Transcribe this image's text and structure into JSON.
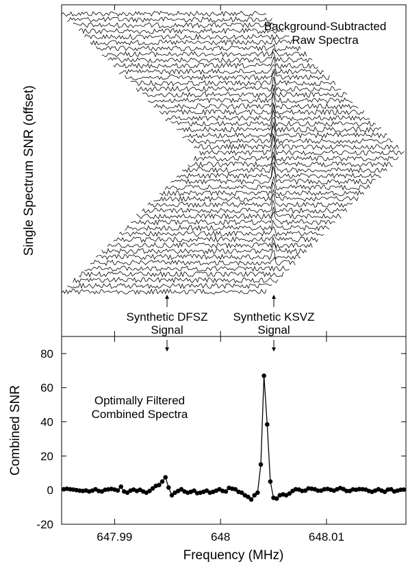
{
  "chart_data": [
    {
      "type": "line",
      "panel": "top",
      "ylabel": "Single Spectrum SNR (offset)",
      "annotation_title": [
        "Background-Subtracted",
        "Raw Spectra"
      ],
      "annotation_dfsz": [
        "Synthetic DFSZ",
        "Signal"
      ],
      "annotation_ksvz": [
        "Synthetic KSVZ",
        "Signal"
      ],
      "spectra_count": 49,
      "ksvz_peak_frequency": 648.005,
      "dfsz_frequency": 647.995,
      "note_series": "stack of offset background-subtracted raw spectra, each shifted in frequency"
    },
    {
      "type": "line",
      "panel": "bottom",
      "xlabel": "Frequency (MHz)",
      "ylabel": "Combined SNR",
      "title": [
        "Optimally Filtered",
        "Combined Spectra"
      ],
      "xlim": [
        647.985,
        648.0175
      ],
      "ylim": [
        -20,
        90
      ],
      "xticks": [
        647.99,
        648,
        648.01
      ],
      "xtick_labels": [
        "647.99",
        "648",
        "648.01"
      ],
      "yticks": [
        -20,
        0,
        20,
        40,
        60,
        80
      ],
      "ytick_labels": [
        "-20",
        "0",
        "20",
        "40",
        "60",
        "80"
      ],
      "series": [
        {
          "x": [
            647.9852,
            647.9855,
            647.9858,
            647.9861,
            647.9864,
            647.9867,
            647.987,
            647.9873,
            647.9876,
            647.9879,
            647.9882,
            647.9885,
            647.9888,
            647.9891,
            647.9894,
            647.9897,
            647.99,
            647.9903,
            647.9906,
            647.9909,
            647.9912,
            647.9915,
            647.9918,
            647.9921,
            647.9924,
            647.9927,
            647.993,
            647.9933,
            647.9936,
            647.9939,
            647.9942,
            647.9945,
            647.9948,
            647.9951,
            647.9954,
            647.9957,
            647.996,
            647.9963,
            647.9966,
            647.9969,
            647.9972,
            647.9975,
            647.9978,
            647.9981,
            647.9984,
            647.9987,
            647.999,
            647.9993,
            647.9996,
            647.9999,
            648.0002,
            648.0005,
            648.0008,
            648.0011,
            648.0014,
            648.0017,
            648.002,
            648.0023,
            648.0026,
            648.0029,
            648.0032,
            648.0035,
            648.0038,
            648.0041,
            648.0044,
            648.0047,
            648.005,
            648.0053,
            648.0056,
            648.0059,
            648.0062,
            648.0065,
            648.0068,
            648.0071,
            648.0074,
            648.0077,
            648.008,
            648.0083,
            648.0086,
            648.0089,
            648.0092,
            648.0095,
            648.0098,
            648.0101,
            648.0104,
            648.0107,
            648.011,
            648.0113,
            648.0116,
            648.0119,
            648.0122,
            648.0125,
            648.0128,
            648.0131,
            648.0134,
            648.0137,
            648.014,
            648.0143,
            648.0146,
            648.0149,
            648.0152,
            648.0155,
            648.0158,
            648.0161,
            648.0164,
            648.0167,
            648.017,
            648.0173
          ],
          "y": [
            0.5,
            0.8,
            0.5,
            0.3,
            0,
            -0.3,
            -0.5,
            -0.2,
            -0.8,
            -0.3,
            0.5,
            -0.5,
            -0.8,
            0.2,
            0.4,
            0.7,
            0.3,
            -0.2,
            2.0,
            -0.8,
            -1.5,
            -0.3,
            0.3,
            -0.5,
            0.2,
            -0.8,
            -1.5,
            -0.5,
            1.0,
            2.5,
            3.0,
            5.0,
            7.5,
            1.5,
            -3.0,
            -1.5,
            -0.5,
            0.5,
            -0.8,
            -1.5,
            -1.0,
            -0.3,
            -1.8,
            -1.5,
            -1.0,
            -0.3,
            -1.5,
            -1.0,
            -0.3,
            0.5,
            -0.5,
            -0.8,
            1.3,
            0.8,
            0.5,
            -1.0,
            -1.5,
            -3.0,
            -4.0,
            -5.5,
            -3.0,
            -1.5,
            15.0,
            67.0,
            38.5,
            5.0,
            -4.5,
            -5.0,
            -3.0,
            -2.5,
            -3.0,
            -2.0,
            -0.5,
            0.5,
            0.3,
            -0.5,
            -0.3,
            1.0,
            0.8,
            0.5,
            -0.3,
            -0.3,
            0.5,
            0.7,
            0.2,
            -0.3,
            0.5,
            1.2,
            0.6,
            -0.5,
            -0.5,
            0.4,
            0.2,
            0.6,
            0.5,
            0.3,
            -0.5,
            -1.0,
            -0.3,
            0.5,
            -0.3,
            -1.0,
            0.3,
            0.5,
            -0.8,
            -0.3,
            0.2,
            0.3
          ]
        }
      ]
    }
  ]
}
